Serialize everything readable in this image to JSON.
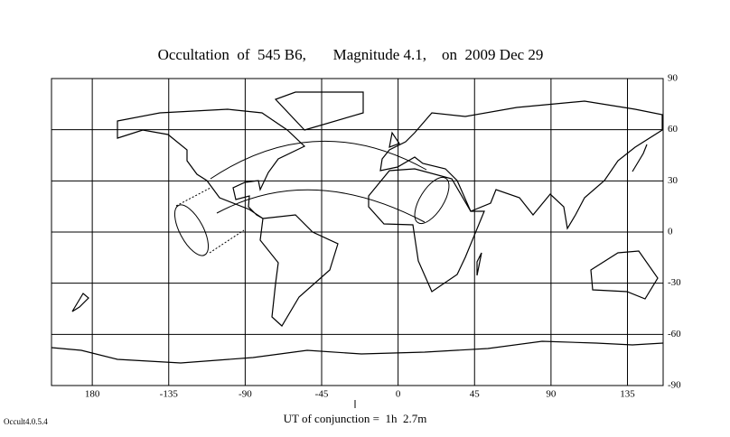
{
  "title": "Occultation  of  545 B6,       Magnitude 4.1,    on  2009 Dec 29",
  "map": {
    "xlim": [
      -204,
      156
    ],
    "ylim": [
      -90,
      90
    ],
    "xticks": [
      {
        "value": -180,
        "label": "180"
      },
      -135,
      -90,
      -45,
      0,
      45,
      90,
      135
    ],
    "yticks": [
      90,
      60,
      30,
      0,
      -30,
      -60,
      -90
    ]
  },
  "footer": "UT of conjunction =  1h  2.7m",
  "version": "Occult4.0.5.4"
}
